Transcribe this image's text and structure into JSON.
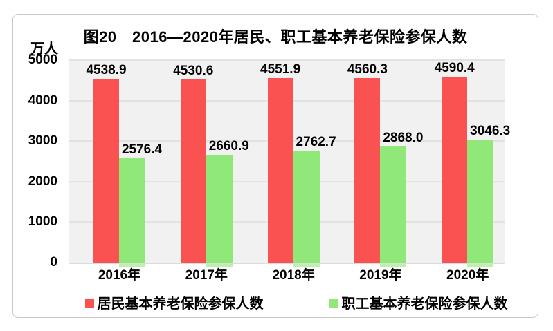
{
  "chart_data": {
    "type": "bar",
    "title": "图20　2016—2020年居民、职工基本养老保险参保人数",
    "unit_label": "万人",
    "categories": [
      "2016年",
      "2017年",
      "2018年",
      "2019年",
      "2020年"
    ],
    "series": [
      {
        "key": "residents",
        "name": "居民基本养老保险参保人数",
        "color": "#fa5151",
        "values": [
          4538.9,
          4530.6,
          4551.9,
          4560.3,
          4590.4
        ]
      },
      {
        "key": "employees",
        "name": "职工基本养老保险参保人数",
        "color": "#90e878",
        "values": [
          2576.4,
          2660.9,
          2762.7,
          2868.0,
          3046.3
        ]
      }
    ],
    "ylim": [
      0,
      5000
    ],
    "yticks": [
      0,
      1000,
      2000,
      3000,
      4000,
      5000
    ],
    "grid": true,
    "value_labels": true,
    "value_label_decimals": 1,
    "legend_position": "bottom"
  },
  "style": {
    "plot_background": "#f1f1f1",
    "gridline_color": "#e2e2e2",
    "axis_line_color": "#dcdcdc",
    "frame_border_color": "#c9c9c9",
    "text_color": "#000000",
    "employees_underhang_color": "#bdf0aa"
  }
}
